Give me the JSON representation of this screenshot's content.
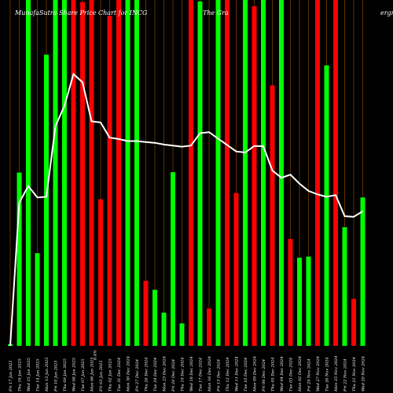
{
  "title": {
    "left": "MunafaSutra Share Price Chart for INCG",
    "middle": "The Gra",
    "right": "ergra"
  },
  "colors": {
    "background": "#000000",
    "up": "#00ff00",
    "down": "#ff0000",
    "line": "#ffffff",
    "grid": "#8b4500"
  },
  "chart_data": {
    "type": "bar",
    "ylim": [
      0,
      100
    ],
    "x_tick_labels": [
      "Fri 17 Jan 2025",
      "Thu 16 Jan 2025",
      "Wed 15 Jan 2025",
      "Tue 14 Jan 2025",
      "Mon 13 Jan 2025",
      "Fri 10 Jan 2025",
      "Thu 09 Jan 2025",
      "Wed 08 Jan 2025",
      "Tue 07 Jan 2025",
      "Mon 06 Jan 2025",
      "Fri 03 Jan 2025",
      "Thu 02 Jan 2025",
      "Tue 31 Dec 2024",
      "Mon 30 Dec 2024",
      "Fri 27 Dec 2024",
      "Thu 26 Dec 2024",
      "Tue 24 Dec 2024",
      "Mon 23 Dec 2024",
      "Fri 20 Dec 2024",
      "Thu 19 Dec 2024",
      "Wed 18 Dec 2024",
      "Tue 17 Dec 2024",
      "Mon 16 Dec 2024",
      "Fri 13 Dec 2024",
      "Thu 12 Dec 2024",
      "Wed 11 Dec 2024",
      "Tue 10 Dec 2024",
      "Mon 09 Dec 2024",
      "Fri 06 Dec 2024",
      "Thu 05 Dec 2024",
      "Wed 04 Dec 2024",
      "Tue 03 Dec 2024",
      "Mon 02 Dec 2024",
      "Fri 29 Nov 2024",
      "Wed 27 Nov 2024",
      "Tue 26 Nov 2024",
      "Mon 25 Nov 2024",
      "Fri 22 Nov 2024",
      "Thu 21 Nov 2024",
      "Wed 20 Nov 2024"
    ],
    "stray_label": "6.4%",
    "bars": {
      "colors": [
        "green",
        "green",
        "green",
        "green",
        "green",
        "green",
        "green",
        "red",
        "red",
        "red",
        "red",
        "red",
        "red",
        "green",
        "green",
        "red",
        "green",
        "green",
        "green",
        "green",
        "red",
        "green",
        "red",
        "green",
        "red",
        "red",
        "green",
        "red",
        "green",
        "red",
        "green",
        "red",
        "green",
        "green",
        "red",
        "green",
        "red",
        "green",
        "red",
        "green"
      ],
      "values": [
        0.5,
        50.1,
        100,
        26.8,
        84.2,
        100,
        100,
        100,
        99.4,
        100,
        42.4,
        95.4,
        100,
        100,
        100,
        18.8,
        16.2,
        9.6,
        50.2,
        6.5,
        100,
        99.6,
        10.8,
        100,
        100,
        44.2,
        100,
        98.2,
        100,
        75.3,
        100,
        30.9,
        25.5,
        25.8,
        100,
        81.1,
        100,
        34.3,
        13.6,
        42.9
      ]
    },
    "line": {
      "values": [
        0,
        41.4,
        46.2,
        42.9,
        43.1,
        63.5,
        69.4,
        78.6,
        76.2,
        64.9,
        64.6,
        60.2,
        59.8,
        59.2,
        59.2,
        58.9,
        58.7,
        58.2,
        57.9,
        57.6,
        57.9,
        61.5,
        61.8,
        59.9,
        58.1,
        56.2,
        55.9,
        57.8,
        57.7,
        50.7,
        48.6,
        49.5,
        46.9,
        44.8,
        43.8,
        43.1,
        43.6,
        37.5,
        37.3,
        38.9
      ]
    }
  }
}
